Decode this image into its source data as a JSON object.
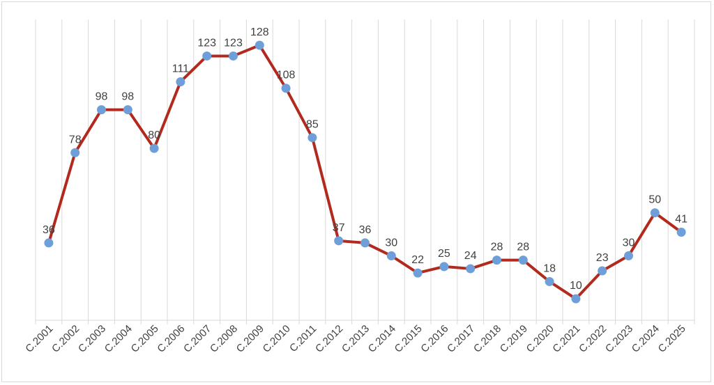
{
  "chart_data": {
    "type": "line",
    "categories": [
      "C.2001",
      "C.2002",
      "C.2003",
      "C.2004",
      "C.2005",
      "C.2006",
      "C.2007",
      "C.2008",
      "C.2009",
      "C.2010",
      "C.2011",
      "C.2012",
      "C.2013",
      "C.2014",
      "C.2015",
      "C.2016",
      "C.2017",
      "C.2018",
      "C.2019",
      "C.2020",
      "C.2021",
      "C.2022",
      "C.2023",
      "C.2024",
      "C.2025"
    ],
    "series": [
      {
        "values": [
          36,
          78,
          98,
          98,
          80,
          111,
          123,
          123,
          128,
          108,
          85,
          37,
          36,
          30,
          22,
          25,
          24,
          28,
          28,
          18,
          10,
          23,
          30,
          50,
          41
        ]
      }
    ],
    "ylim": [
      0,
      140
    ],
    "grid": "vertical",
    "legend": "none",
    "colors": {
      "line": "#b22a1e",
      "marker": "#6f9fd8",
      "grid": "#d9d9d9",
      "text": "#404040"
    }
  }
}
